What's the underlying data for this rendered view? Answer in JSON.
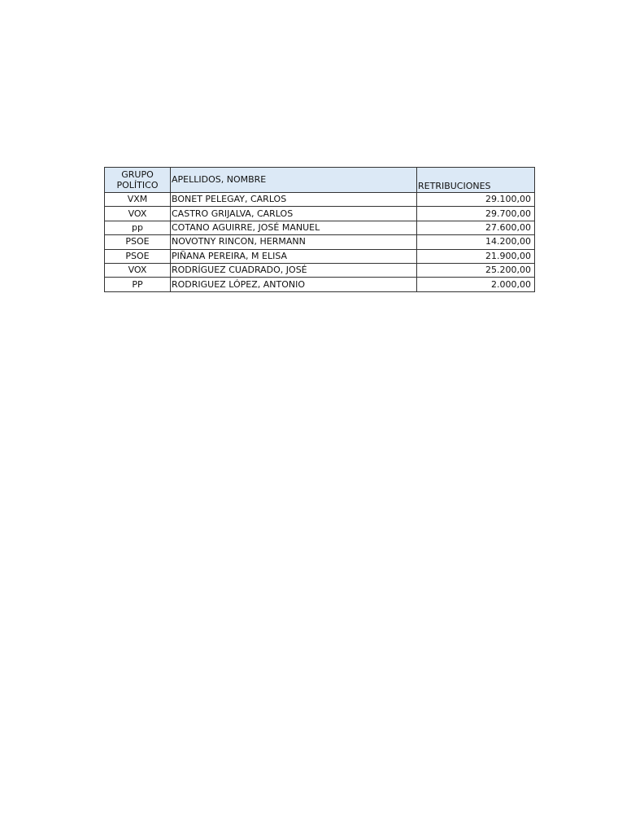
{
  "table": {
    "headers": {
      "group_line1": "GRUPO",
      "group_line2": "POLÍTICO",
      "name": "APELLIDOS, NOMBRE",
      "pay": "RETRIBUCIONES"
    },
    "header_color": "#dce9f6",
    "rows": [
      {
        "group": "VXM",
        "name": "BONET PELEGAY, CARLOS",
        "pay": "29.100,00"
      },
      {
        "group": "VOX",
        "name": "CASTRO GRIJALVA, CARLOS",
        "pay": "29.700,00"
      },
      {
        "group": "pp",
        "name": "COTANO AGUIRRE, JOSÉ MANUEL",
        "pay": "27.600,00"
      },
      {
        "group": "PSOE",
        "name": "NOVOTNY RINCON, HERMANN",
        "pay": "14.200,00"
      },
      {
        "group": "PSOE",
        "name": "PIÑANA PEREIRA, M ELISA",
        "pay": "21.900,00"
      },
      {
        "group": "VOX",
        "name": "RODRÍGUEZ CUADRADO, JOSÉ",
        "pay": "25.200,00"
      },
      {
        "group": "PP",
        "name": "RODRIGUEZ LÓPEZ, ANTONIO",
        "pay": "2.000,00"
      }
    ]
  }
}
